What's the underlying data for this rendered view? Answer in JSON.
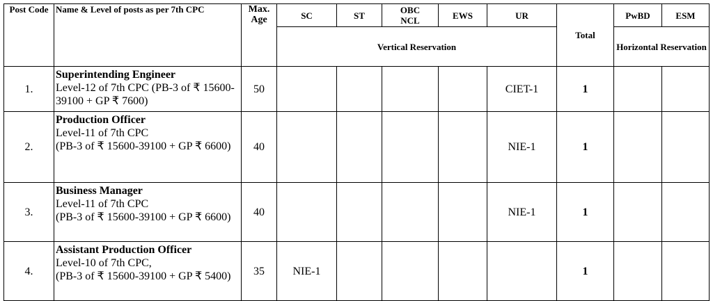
{
  "header": {
    "post_code": "Post Code",
    "name": "Name & Level of posts as per 7th CPC",
    "age": "Max. Age",
    "sc": "SC",
    "st": "ST",
    "obc": "OBC NCL",
    "ews": "EWS",
    "ur": "UR",
    "total": "Total",
    "pwbd": "PwBD",
    "esm": "ESM",
    "vertical": "Vertical Reservation",
    "horizontal": "Horizontal Reservation"
  },
  "rows": [
    {
      "code": "1.",
      "post": "Superintending Engineer",
      "details": [
        "Level-12 of 7th CPC (PB-3 of ₹ 15600-39100 + GP ₹ 7600)"
      ],
      "age": "50",
      "ur": "CIET-1",
      "total": "1"
    },
    {
      "code": "2.",
      "post": "Production Officer",
      "details": [
        "Level-11 of 7th CPC",
        "(PB-3 of ₹ 15600-39100 + GP ₹ 6600)"
      ],
      "age": "40",
      "ur": "NIE-1",
      "total": "1"
    },
    {
      "code": "3.",
      "post": "Business Manager",
      "details": [
        "Level-11 of 7th CPC",
        "(PB-3 of ₹ 15600-39100 + GP ₹ 6600)"
      ],
      "age": "40",
      "ur": "NIE-1",
      "total": "1"
    },
    {
      "code": "4.",
      "post": "Assistant Production Officer",
      "details": [
        "Level-10 of 7th CPC,",
        "(PB-3 of ₹ 15600-39100 + GP ₹ 5400)"
      ],
      "age": "35",
      "sc": "NIE-1",
      "total": "1"
    }
  ]
}
